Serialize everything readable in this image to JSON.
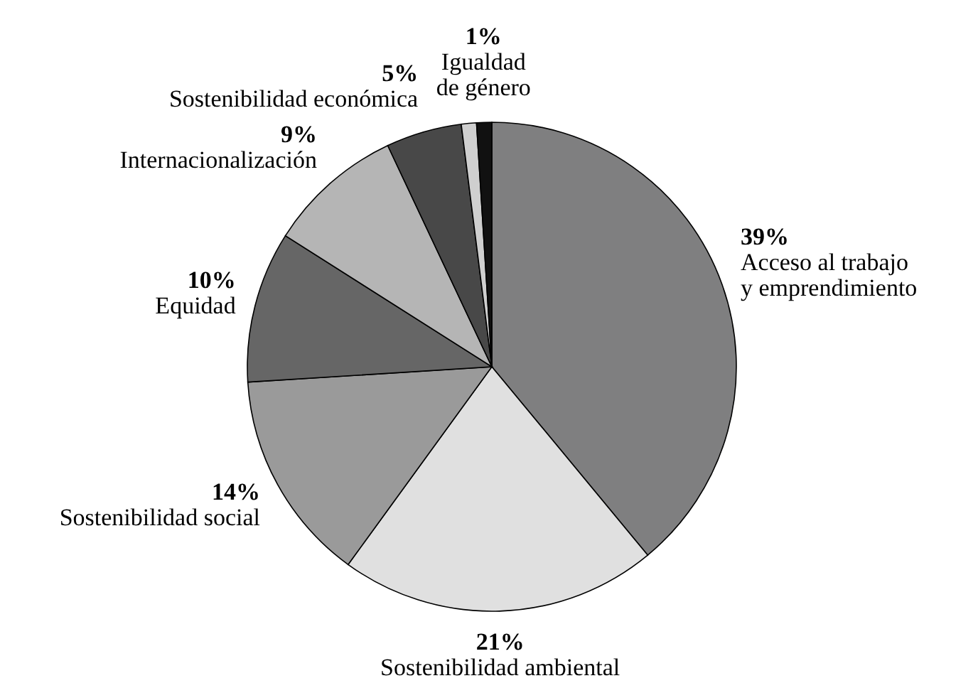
{
  "chart_data": {
    "type": "pie",
    "categories": [
      "Acceso al trabajo\ny emprendimiento",
      "Sostenibilidad ambiental",
      "Sostenibilidad social",
      "Equidad",
      "Internacionalización",
      "Sostenibilidad económica",
      null,
      "Igualdad\nde género"
    ],
    "values": [
      39,
      21,
      14,
      10,
      9,
      5,
      1,
      1
    ],
    "value_labels": [
      "39%",
      "21%",
      "14%",
      "10%",
      "9%",
      "5%",
      null,
      "1%"
    ],
    "colors": [
      "#7f7f80",
      "#e0e0e0",
      "#9a9a9a",
      "#666666",
      "#b5b5b5",
      "#484848",
      "#cfcfcf",
      "#111111"
    ]
  }
}
